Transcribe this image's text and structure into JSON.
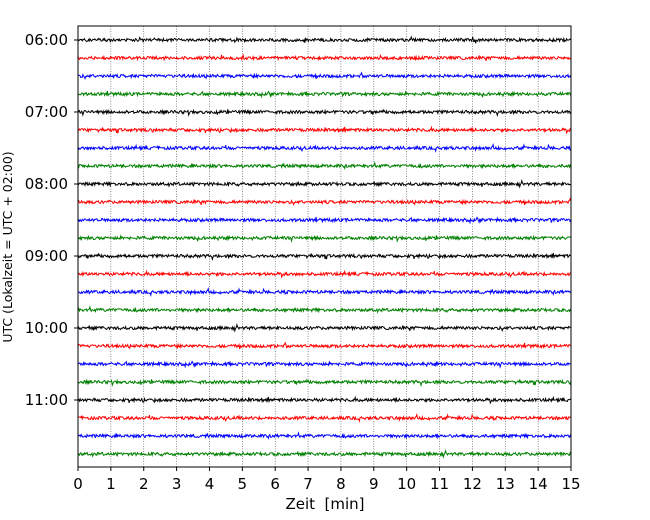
{
  "chart_data": {
    "type": "line",
    "title": "",
    "xlabel": "Zeit  [min]",
    "ylabel": "UTC (Lokalzeit = UTC + 02:00)",
    "xlim": [
      0,
      15
    ],
    "x_ticks": [
      "0",
      "1",
      "2",
      "3",
      "4",
      "5",
      "6",
      "7",
      "8",
      "9",
      "10",
      "11",
      "12",
      "13",
      "14",
      "15"
    ],
    "y_ticks": [
      "06:00",
      "07:00",
      "08:00",
      "09:00",
      "10:00",
      "11:00"
    ],
    "grid": "vertical dotted",
    "trace_interval_minutes": 15,
    "first_trace": "06:00",
    "trace_count": 24,
    "trace_colors": [
      "#000000",
      "#ff0000",
      "#0000ff",
      "#008000"
    ]
  }
}
